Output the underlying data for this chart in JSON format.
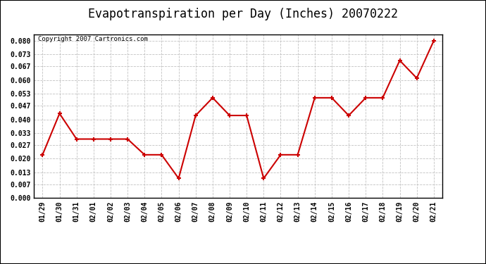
{
  "title": "Evapotranspiration per Day (Inches) 20070222",
  "copyright_text": "Copyright 2007 Cartronics.com",
  "x_labels": [
    "01/29",
    "01/30",
    "01/31",
    "02/01",
    "02/02",
    "02/03",
    "02/04",
    "02/05",
    "02/06",
    "02/07",
    "02/08",
    "02/09",
    "02/10",
    "02/11",
    "02/12",
    "02/13",
    "02/14",
    "02/15",
    "02/16",
    "02/17",
    "02/18",
    "02/19",
    "02/20",
    "02/21"
  ],
  "y_values": [
    0.022,
    0.043,
    0.03,
    0.03,
    0.03,
    0.03,
    0.022,
    0.022,
    0.01,
    0.042,
    0.051,
    0.042,
    0.042,
    0.01,
    0.022,
    0.022,
    0.051,
    0.051,
    0.042,
    0.051,
    0.051,
    0.07,
    0.061,
    0.08
  ],
  "line_color": "#cc0000",
  "marker": "+",
  "marker_size": 5,
  "marker_edge_width": 1.5,
  "line_width": 1.5,
  "bg_color": "#ffffff",
  "grid_color": "#bbbbbb",
  "ylim": [
    0.0,
    0.0833
  ],
  "yticks": [
    0.0,
    0.007,
    0.013,
    0.02,
    0.027,
    0.033,
    0.04,
    0.047,
    0.053,
    0.06,
    0.067,
    0.073,
    0.08
  ],
  "title_fontsize": 12,
  "tick_fontsize": 7,
  "copyright_fontsize": 6.5,
  "outer_border_color": "#000000"
}
